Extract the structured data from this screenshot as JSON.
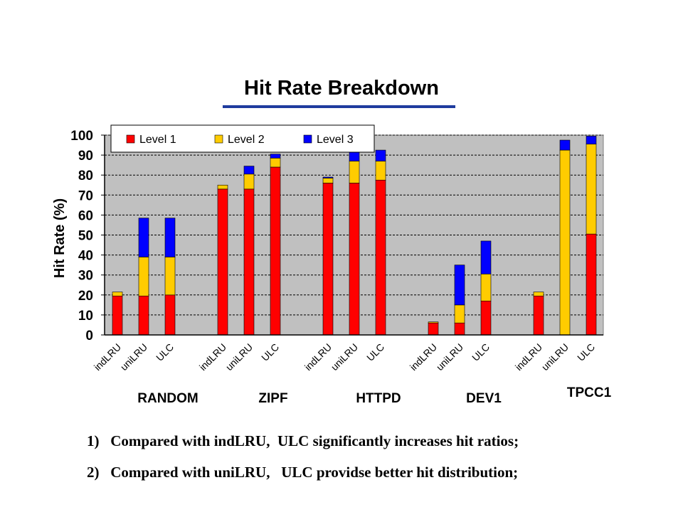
{
  "title": "Hit Rate Breakdown",
  "notes": [
    "1)   Compared with indLRU,  ULC significantly increases hit ratios;",
    "2)   Compared with uniLRU,   ULC providse better hit distribution;"
  ],
  "colors": {
    "level1": "#ff0000",
    "level2": "#ffcc00",
    "level3": "#0000ff",
    "plot_bg": "#c0c0c0",
    "title_rule": "#1f3c9e"
  },
  "chart_data": {
    "type": "bar",
    "stacked": true,
    "ylabel": "Hit Rate (%)",
    "ylim": [
      0,
      100
    ],
    "yticks": [
      0,
      10,
      20,
      30,
      40,
      50,
      60,
      70,
      80,
      90,
      100
    ],
    "grid": true,
    "legend_position": "top-left",
    "groups": [
      "RANDOM",
      "ZIPF",
      "HTTPD",
      "DEV1",
      "TPCC1"
    ],
    "bar_labels": [
      "indLRU",
      "uniLRU",
      "ULC"
    ],
    "categories": [
      "indLRU",
      "uniLRU",
      "ULC",
      "indLRU",
      "uniLRU",
      "ULC",
      "indLRU",
      "uniLRU",
      "ULC",
      "indLRU",
      "uniLRU",
      "ULC",
      "indLRU",
      "uniLRU",
      "ULC"
    ],
    "series": [
      {
        "name": "Level 1",
        "values": [
          19.5,
          19.5,
          20,
          73,
          73,
          84,
          76,
          76,
          77.5,
          6,
          6,
          17,
          19.5,
          0,
          50.5
        ]
      },
      {
        "name": "Level 2",
        "values": [
          2,
          19.5,
          19,
          2,
          7.5,
          4.5,
          2.5,
          11,
          9.5,
          0.5,
          9,
          13.5,
          2,
          92.5,
          45
        ]
      },
      {
        "name": "Level 3",
        "values": [
          0,
          19.5,
          19.5,
          0,
          4,
          2,
          0.5,
          5.5,
          5.5,
          0,
          20,
          16.5,
          0,
          5,
          4
        ]
      }
    ]
  }
}
